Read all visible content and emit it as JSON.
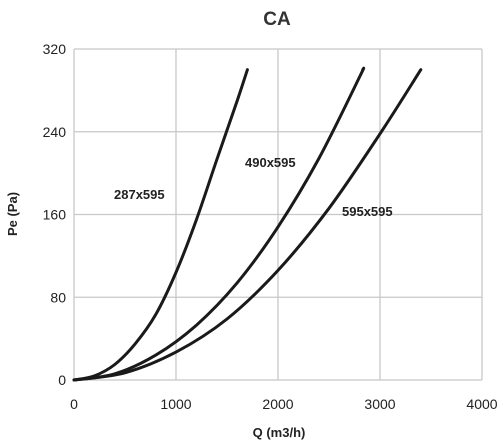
{
  "chart_data": {
    "type": "line",
    "title": "CA",
    "xlabel": "Q (m3/h)",
    "ylabel": "Pe (Pa)",
    "xlim": [
      0,
      4000
    ],
    "ylim": [
      0,
      320
    ],
    "xticks": [
      0,
      1000,
      2000,
      3000,
      4000
    ],
    "yticks": [
      0,
      80,
      160,
      240,
      320
    ],
    "xtick_labels": [
      "0",
      "1000",
      "2000",
      "3000",
      "4000"
    ],
    "ytick_labels": [
      "0",
      "80",
      "160",
      "240",
      "320"
    ],
    "grid": true,
    "legend": "none",
    "series": [
      {
        "name": "287x595",
        "x": [
          0,
          200,
          400,
          600,
          800,
          1000,
          1200,
          1400,
          1600,
          1700
        ],
        "y": [
          0,
          4,
          15,
          35,
          63,
          104,
          155,
          213,
          270,
          300
        ]
      },
      {
        "name": "490x595",
        "x": [
          0,
          400,
          800,
          1200,
          1600,
          2000,
          2400,
          2800,
          2830
        ],
        "y": [
          0,
          6,
          24,
          53,
          94,
          148,
          214,
          293,
          300
        ]
      },
      {
        "name": "595x595",
        "x": [
          0,
          500,
          1000,
          1500,
          2000,
          2500,
          3000,
          3400
        ],
        "y": [
          0,
          7,
          27,
          59,
          106,
          166,
          238,
          300
        ]
      }
    ]
  }
}
